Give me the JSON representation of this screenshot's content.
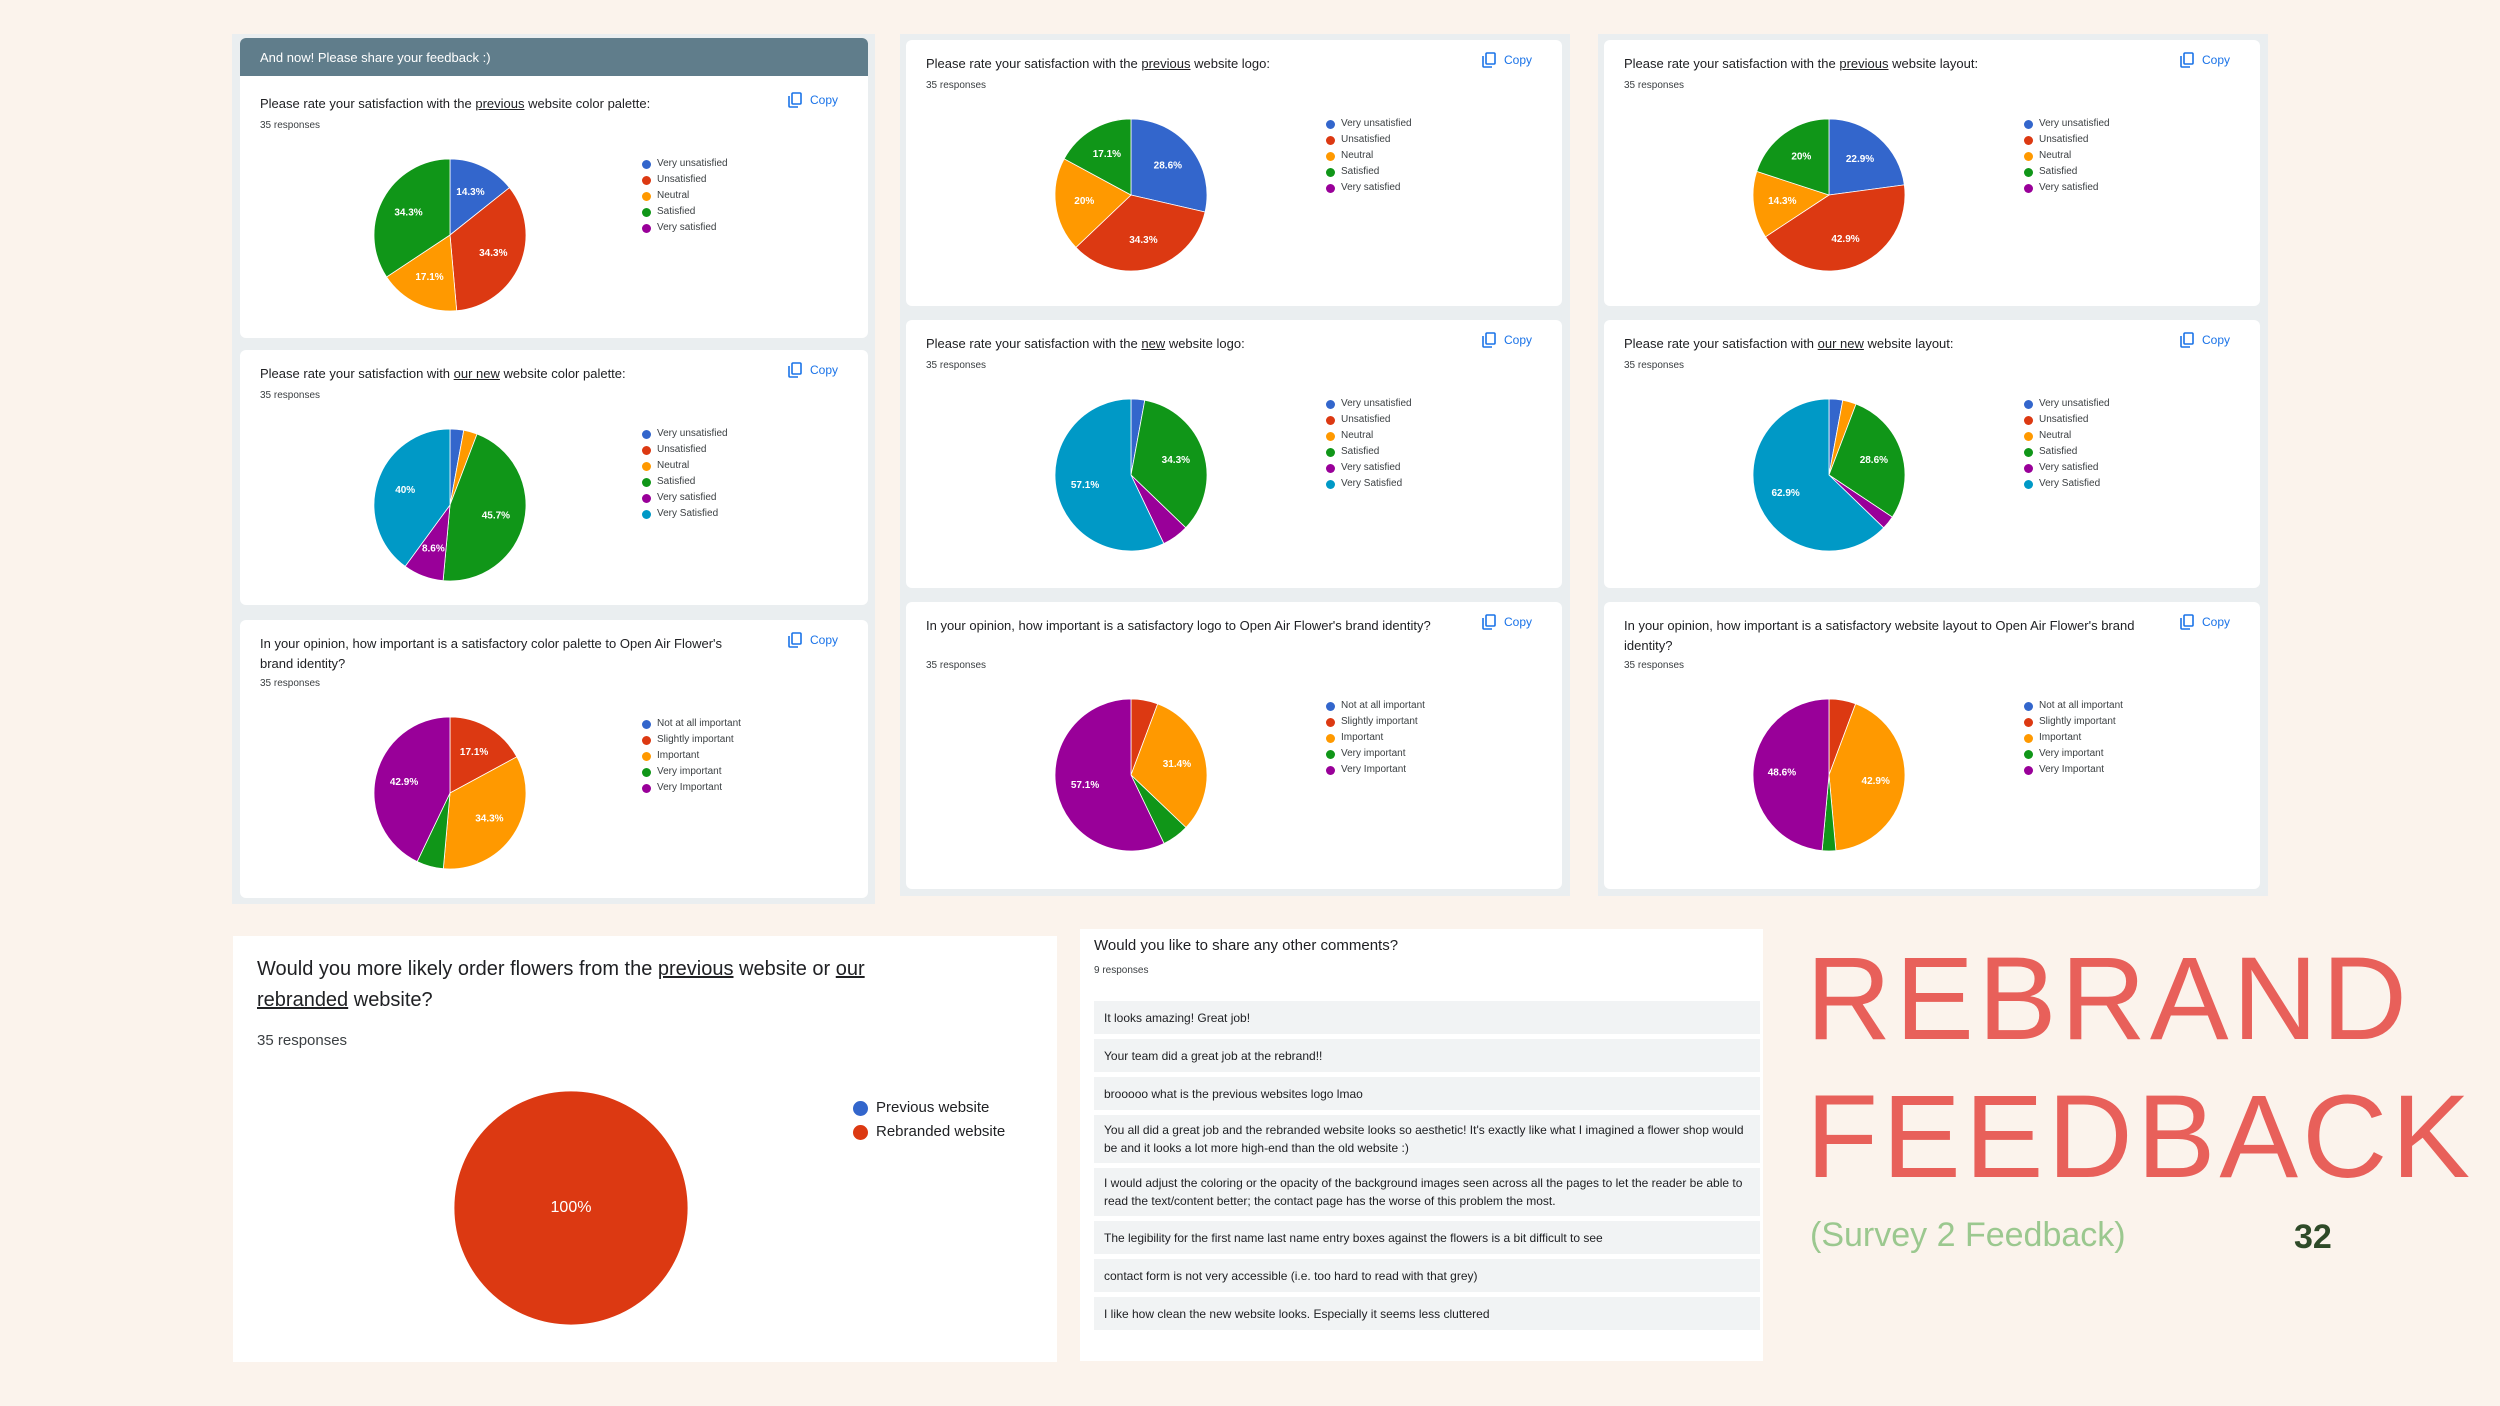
{
  "colors": {
    "very_unsatisfied": "#3366cc",
    "unsatisfied": "#dc3912",
    "neutral": "#ff9900",
    "satisfied": "#109618",
    "very_satisfied": "#990099",
    "very_satisfied_2": "#0099c6",
    "title": "#e8605a",
    "subtitle": "#9bc88f",
    "header_bar": "#607d8b"
  },
  "copy_label": "Copy",
  "copy_icon": "copy-icon",
  "feedback_header": "And now! Please share your feedback :)",
  "charts": [
    {
      "id": "c1",
      "q_before": "Please rate your satisfaction with the ",
      "q_u": "previous",
      "q_after": " website color palette:",
      "responses": "35 responses",
      "chart_data": {
        "type": "pie",
        "labels": [
          "Very unsatisfied",
          "Unsatisfied",
          "Neutral",
          "Satisfied",
          "Very satisfied"
        ],
        "values": [
          14.3,
          34.3,
          17.1,
          34.3,
          0
        ],
        "label_texts": [
          "14.3%",
          "34.3%",
          "17.1%",
          "34.3%",
          ""
        ],
        "colors": [
          "#3366cc",
          "#dc3912",
          "#ff9900",
          "#109618",
          "#990099"
        ]
      }
    },
    {
      "id": "c2",
      "q_before": "Please rate your satisfaction with ",
      "q_u": "our new",
      "q_after": " website color palette:",
      "responses": "35 responses",
      "chart_data": {
        "type": "pie",
        "labels": [
          "Very unsatisfied",
          "Unsatisfied",
          "Neutral",
          "Satisfied",
          "Very satisfied",
          "Very Satisfied"
        ],
        "values": [
          2.9,
          0,
          2.9,
          45.7,
          8.6,
          40
        ],
        "label_texts": [
          "",
          "",
          "",
          "45.7%",
          "8.6%",
          "40%"
        ],
        "colors": [
          "#3366cc",
          "#dc3912",
          "#ff9900",
          "#109618",
          "#990099",
          "#0099c6"
        ]
      }
    },
    {
      "id": "c3",
      "q_before": "In your opinion, how important is a satisfactory color palette to Open Air Flower's brand identity?",
      "q_u": "",
      "q_after": "",
      "responses": "35 responses",
      "chart_data": {
        "type": "pie",
        "labels": [
          "Not at all important",
          "Slightly important",
          "Important",
          "Very important",
          "Very Important"
        ],
        "values": [
          0,
          17.1,
          34.3,
          5.7,
          42.9
        ],
        "label_texts": [
          "",
          "17.1%",
          "34.3%",
          "",
          "42.9%"
        ],
        "colors": [
          "#3366cc",
          "#dc3912",
          "#ff9900",
          "#109618",
          "#990099"
        ]
      }
    },
    {
      "id": "c4",
      "q_before": "Please rate your satisfaction with the ",
      "q_u": "previous",
      "q_after": " website logo:",
      "responses": "35 responses",
      "chart_data": {
        "type": "pie",
        "labels": [
          "Very unsatisfied",
          "Unsatisfied",
          "Neutral",
          "Satisfied",
          "Very satisfied"
        ],
        "values": [
          28.6,
          34.3,
          20,
          17.1,
          0
        ],
        "label_texts": [
          "28.6%",
          "34.3%",
          "20%",
          "17.1%",
          ""
        ],
        "colors": [
          "#3366cc",
          "#dc3912",
          "#ff9900",
          "#109618",
          "#990099"
        ]
      }
    },
    {
      "id": "c5",
      "q_before": "Please rate your satisfaction with the ",
      "q_u": "new",
      "q_after": " website logo:",
      "responses": "35 responses",
      "chart_data": {
        "type": "pie",
        "labels": [
          "Very unsatisfied",
          "Unsatisfied",
          "Neutral",
          "Satisfied",
          "Very satisfied",
          "Very Satisfied"
        ],
        "values": [
          2.9,
          0,
          0,
          34.3,
          5.7,
          57.1
        ],
        "label_texts": [
          "",
          "",
          "",
          "34.3%",
          "",
          "57.1%"
        ],
        "colors": [
          "#3366cc",
          "#dc3912",
          "#ff9900",
          "#109618",
          "#990099",
          "#0099c6"
        ]
      }
    },
    {
      "id": "c6",
      "q_before": "In your opinion, how important is a satisfactory logo to Open Air Flower's brand identity?",
      "q_u": "",
      "q_after": "",
      "responses": "35 responses",
      "chart_data": {
        "type": "pie",
        "labels": [
          "Not at all important",
          "Slightly important",
          "Important",
          "Very important",
          "Very Important"
        ],
        "values": [
          0,
          5.7,
          31.4,
          5.7,
          57.1
        ],
        "label_texts": [
          "",
          "",
          "31.4%",
          "",
          "57.1%"
        ],
        "colors": [
          "#3366cc",
          "#dc3912",
          "#ff9900",
          "#109618",
          "#990099"
        ]
      }
    },
    {
      "id": "c7",
      "q_before": "Please rate your satisfaction with the ",
      "q_u": "previous",
      "q_after": " website layout:",
      "responses": "35 responses",
      "chart_data": {
        "type": "pie",
        "labels": [
          "Very unsatisfied",
          "Unsatisfied",
          "Neutral",
          "Satisfied",
          "Very satisfied"
        ],
        "values": [
          22.9,
          42.9,
          14.3,
          20,
          0
        ],
        "label_texts": [
          "22.9%",
          "42.9%",
          "14.3%",
          "20%",
          ""
        ],
        "colors": [
          "#3366cc",
          "#dc3912",
          "#ff9900",
          "#109618",
          "#990099"
        ]
      }
    },
    {
      "id": "c8",
      "q_before": "Please rate your satisfaction with ",
      "q_u": "our new",
      "q_after": " website layout:",
      "responses": "35 responses",
      "chart_data": {
        "type": "pie",
        "labels": [
          "Very unsatisfied",
          "Unsatisfied",
          "Neutral",
          "Satisfied",
          "Very satisfied",
          "Very Satisfied"
        ],
        "values": [
          2.9,
          0,
          2.9,
          28.6,
          2.9,
          62.9
        ],
        "label_texts": [
          "",
          "",
          "",
          "28.6%",
          "",
          "62.9%"
        ],
        "colors": [
          "#3366cc",
          "#dc3912",
          "#ff9900",
          "#109618",
          "#990099",
          "#0099c6"
        ]
      }
    },
    {
      "id": "c9",
      "q_before": "In your opinion, how important is a satisfactory website layout to Open Air Flower's brand identity?",
      "q_u": "",
      "q_after": "",
      "responses": "35 responses",
      "chart_data": {
        "type": "pie",
        "labels": [
          "Not at all important",
          "Slightly important",
          "Important",
          "Very important",
          "Very Important"
        ],
        "values": [
          0,
          5.7,
          42.9,
          2.9,
          48.6
        ],
        "label_texts": [
          "",
          "",
          "42.9%",
          "",
          "48.6%"
        ],
        "colors": [
          "#3366cc",
          "#dc3912",
          "#ff9900",
          "#109618",
          "#990099"
        ]
      }
    }
  ],
  "big_chart": {
    "q_1": "Would you more likely order flowers from the ",
    "q_u1": "previous",
    "q_2": " website or ",
    "q_u2": "our rebranded",
    "q_3": " website?",
    "responses": "35 responses",
    "chart_data": {
      "type": "pie",
      "labels": [
        "Previous website",
        "Rebranded website"
      ],
      "values": [
        0,
        100
      ],
      "label_texts": [
        "",
        "100%"
      ],
      "colors": [
        "#3366cc",
        "#dc3912"
      ]
    }
  },
  "comments": {
    "title": "Would you like to share any other comments?",
    "responses": "9 responses",
    "items": [
      "It looks amazing! Great job!",
      "Your team did a great job at the rebrand!!",
      "brooooo what is the previous websites logo lmao",
      "You all did a great job and the rebranded website looks so aesthetic! It's exactly like what I imagined a flower shop would be and it looks a lot more high-end than the old website :)",
      "I would adjust the coloring or the opacity of the background images seen across all the pages to let the reader be able to read the text/content better; the contact page has the worse of this problem the most.",
      "The legibility for the first name last name entry boxes against the flowers is a bit difficult to see",
      "contact form is not very accessible (i.e. too hard to read with that grey)",
      "I like how clean the new website looks. Especially it seems less cluttered"
    ]
  },
  "title_line1": "REBRAND",
  "title_line2": "FEEDBACK",
  "subtitle": "(Survey 2 Feedback)",
  "page_number": "32"
}
